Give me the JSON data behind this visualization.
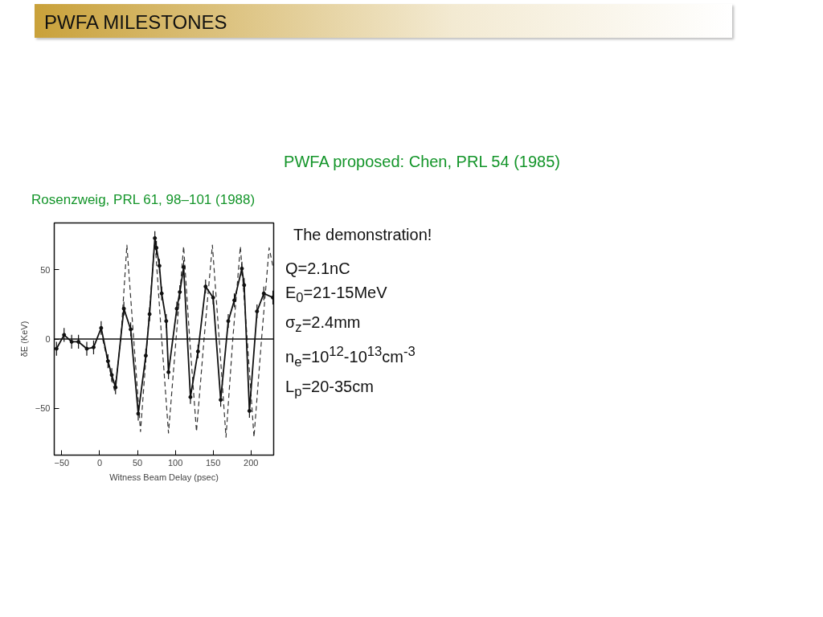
{
  "chart_data": {
    "type": "line",
    "title": "PWFA MILESTONES",
    "subtitle": "PWFA proposed: Chen, PRL 54 (1985)",
    "annotations": [
      "Rosenzweig, PRL 61, 98–101 (1988)",
      "The demonstration!",
      "Q=2.1nC",
      "E$_{0}$=21-15MeV",
      "σ$_{z}$=2.4mm",
      "n$_{e}$=10$^{12}$-10$^{13}$cm$^{-3}$",
      "L$_{p}$=20-35cm"
    ],
    "xlabel": "Witness Beam Delay (psec)",
    "ylabel": "δE (KeV)",
    "series": [
      {
        "color": "#111111",
        "marker": "circle",
        "line_style": "solid",
        "x": [
          -57,
          -47,
          -37,
          -28,
          -17,
          -8,
          2,
          11,
          16,
          21,
          32,
          41,
          51,
          61,
          66,
          73,
          75,
          79,
          82,
          88,
          91,
          102,
          106,
          111,
          120,
          130,
          140,
          150,
          160,
          170,
          178,
          188,
          191,
          198,
          208,
          217,
          229
        ],
        "values": [
          -7,
          3,
          -2,
          -2,
          -7,
          -6,
          8,
          -16,
          -26,
          -35,
          22,
          7,
          -54,
          -12,
          18,
          73,
          66,
          53,
          33,
          13,
          -24,
          22,
          34,
          52,
          -42,
          -9,
          38,
          30,
          -44,
          13,
          28,
          51,
          39,
          -52,
          20,
          33,
          30
        ],
        "errors": [
          5,
          5,
          5,
          5,
          5,
          5,
          5,
          5,
          5,
          5,
          5,
          5,
          5,
          5,
          5,
          5,
          5,
          5,
          5,
          5,
          5,
          5,
          5,
          5,
          5,
          5,
          5,
          5,
          5,
          5,
          5,
          5,
          5,
          5,
          5,
          5,
          5
        ]
      },
      {
        "color": "#333333",
        "marker": "none",
        "line_style": "dashed",
        "x": [
          4,
          20,
          28,
          36,
          45,
          54,
          63,
          73,
          82,
          91,
          101,
          111,
          119,
          128,
          138,
          149,
          158,
          167,
          176,
          186,
          195,
          204,
          214,
          224,
          230
        ],
        "values": [
          0,
          -38,
          0,
          68,
          0,
          -67,
          0,
          72,
          0,
          -68,
          0,
          67,
          0,
          -67,
          0,
          68,
          0,
          -71,
          0,
          67,
          0,
          -71,
          0,
          66,
          50
        ]
      }
    ],
    "xlim": [
      -60,
      230
    ],
    "ylim": [
      -84,
      84
    ],
    "xticks": [
      {
        "value": -50,
        "label": "−50"
      },
      0,
      50,
      100,
      150,
      200
    ],
    "yticks": [
      {
        "value": -50,
        "label": "−50"
      },
      0,
      50
    ],
    "ref_lines": [
      {
        "axis": "y",
        "value": 0,
        "color": "#111111"
      }
    ]
  }
}
